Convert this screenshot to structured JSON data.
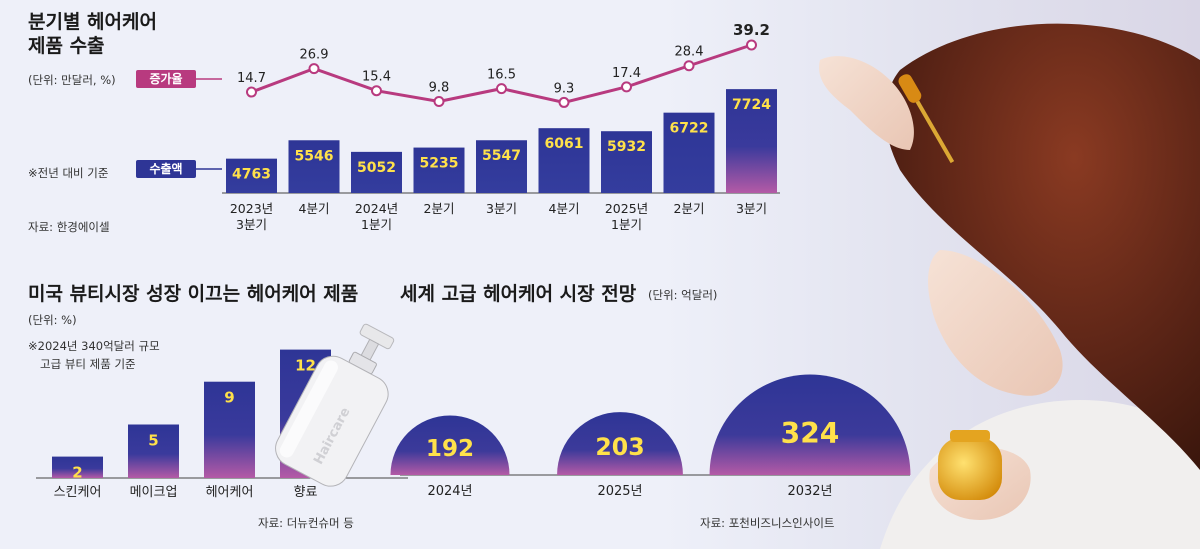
{
  "chart_data": [
    {
      "type": "bar",
      "title": "분기별 헤어케어 제품 수출",
      "unit_note": "(단위: 만달러, %)",
      "basis_note": "※전년 대비 기준",
      "source": "자료: 한경에이셀",
      "categories": [
        [
          "2023년",
          "3분기"
        ],
        [
          "4분기",
          ""
        ],
        [
          "2024년",
          "1분기"
        ],
        [
          "2분기",
          ""
        ],
        [
          "3분기",
          ""
        ],
        [
          "4분기",
          ""
        ],
        [
          "2025년",
          "1분기"
        ],
        [
          "2분기",
          ""
        ],
        [
          "3분기",
          ""
        ]
      ],
      "series": [
        {
          "name": "수출액",
          "values": [
            4763,
            5546,
            5052,
            5235,
            5547,
            6061,
            5932,
            6722,
            7724
          ]
        },
        {
          "name": "증가율",
          "values": [
            14.7,
            26.9,
            15.4,
            9.8,
            16.5,
            9.3,
            17.4,
            28.4,
            39.2
          ]
        }
      ],
      "labels": {
        "growth": "증가율",
        "exports": "수출액"
      }
    },
    {
      "type": "bar",
      "title": "미국 뷰티시장 성장 이끄는 헤어케어 제품",
      "unit_note": "(단위: %)",
      "note_lines": [
        "※2024년 340억달러 규모",
        "고급 뷰티 제품 기준"
      ],
      "source": "자료: 더뉴컨슈머 등",
      "categories": [
        "스킨케어",
        "메이크업",
        "헤어케어",
        "향료"
      ],
      "values": [
        2,
        5,
        9,
        12
      ]
    },
    {
      "type": "area",
      "title": "세계 고급 헤어케어 시장 전망",
      "unit_note": "(단위: 억달러)",
      "source": "자료: 포천비즈니스인사이트",
      "categories": [
        "2024년",
        "2025년",
        "2032년"
      ],
      "values": [
        192,
        203,
        324
      ]
    }
  ],
  "illustration": {
    "bottle_text": "Haircare"
  },
  "colors": {
    "bar_top": "#2e3596",
    "bar_bottom": "#b45aa6",
    "line": "#b83a7f",
    "navy": "#2e3596",
    "value_text": "#ffe14a"
  }
}
